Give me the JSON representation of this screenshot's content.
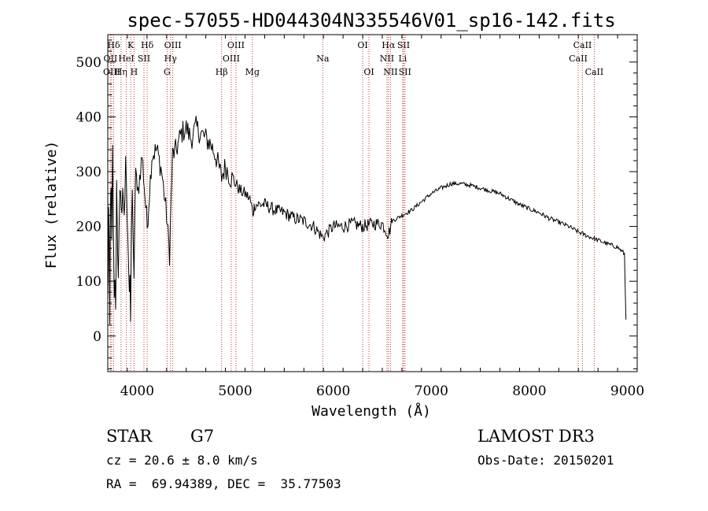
{
  "chart_data": {
    "type": "line",
    "title": "spec-57055-HD044304N335546V01_sp16-142.fits",
    "xlabel": "Wavelength (Å)",
    "ylabel": "Flux (relative)",
    "xlim": [
      3700,
      9100
    ],
    "ylim": [
      -65,
      550
    ],
    "x_ticks": [
      4000,
      5000,
      6000,
      7000,
      8000,
      9000
    ],
    "y_ticks": [
      0,
      100,
      200,
      300,
      400,
      500
    ],
    "series": [
      {
        "name": "flux",
        "color": "#000000",
        "knots": [
          [
            3700,
            50
          ],
          [
            3710,
            220
          ],
          [
            3720,
            0
          ],
          [
            3730,
            300
          ],
          [
            3740,
            150
          ],
          [
            3750,
            320
          ],
          [
            3760,
            120
          ],
          [
            3780,
            80
          ],
          [
            3790,
            250
          ],
          [
            3800,
            110
          ],
          [
            3830,
            280
          ],
          [
            3860,
            200
          ],
          [
            3890,
            320
          ],
          [
            3920,
            80
          ],
          [
            3933,
            30
          ],
          [
            3950,
            300
          ],
          [
            3968,
            60
          ],
          [
            3985,
            330
          ],
          [
            4000,
            250
          ],
          [
            4050,
            330
          ],
          [
            4102,
            200
          ],
          [
            4150,
            330
          ],
          [
            4200,
            340
          ],
          [
            4250,
            300
          ],
          [
            4300,
            220
          ],
          [
            4330,
            150
          ],
          [
            4360,
            330
          ],
          [
            4400,
            340
          ],
          [
            4450,
            370
          ],
          [
            4500,
            380
          ],
          [
            4550,
            360
          ],
          [
            4600,
            380
          ],
          [
            4650,
            370
          ],
          [
            4700,
            360
          ],
          [
            4750,
            350
          ],
          [
            4800,
            330
          ],
          [
            4861,
            290
          ],
          [
            4900,
            310
          ],
          [
            4950,
            290
          ],
          [
            5000,
            280
          ],
          [
            5050,
            265
          ],
          [
            5100,
            260
          ],
          [
            5150,
            250
          ],
          [
            5180,
            225
          ],
          [
            5200,
            240
          ],
          [
            5300,
            240
          ],
          [
            5400,
            230
          ],
          [
            5500,
            225
          ],
          [
            5600,
            215
          ],
          [
            5700,
            210
          ],
          [
            5800,
            200
          ],
          [
            5893,
            180
          ],
          [
            6000,
            200
          ],
          [
            6100,
            200
          ],
          [
            6200,
            205
          ],
          [
            6300,
            200
          ],
          [
            6400,
            205
          ],
          [
            6500,
            205
          ],
          [
            6563,
            185
          ],
          [
            6600,
            210
          ],
          [
            6700,
            220
          ],
          [
            6800,
            230
          ],
          [
            6900,
            245
          ],
          [
            7000,
            260
          ],
          [
            7100,
            270
          ],
          [
            7200,
            278
          ],
          [
            7300,
            278
          ],
          [
            7400,
            275
          ],
          [
            7500,
            270
          ],
          [
            7600,
            265
          ],
          [
            7700,
            260
          ],
          [
            7800,
            250
          ],
          [
            7900,
            240
          ],
          [
            8000,
            232
          ],
          [
            8100,
            225
          ],
          [
            8200,
            215
          ],
          [
            8300,
            208
          ],
          [
            8400,
            200
          ],
          [
            8500,
            190
          ],
          [
            8600,
            182
          ],
          [
            8700,
            175
          ],
          [
            8800,
            168
          ],
          [
            8900,
            162
          ],
          [
            8970,
            150
          ],
          [
            8985,
            30
          ]
        ]
      }
    ],
    "lines": [
      {
        "label": "Hδ",
        "x": 3760,
        "tier": 0
      },
      {
        "label": "OII",
        "x": 3727,
        "tier": 1
      },
      {
        "label": "OIII",
        "x": 3740,
        "tier": 2
      },
      {
        "label": "Hη",
        "x": 3835,
        "tier": 2
      },
      {
        "label": "K",
        "x": 3934,
        "tier": 0
      },
      {
        "label": "HeI",
        "x": 3889,
        "tier": 1
      },
      {
        "label": "H",
        "x": 3968,
        "tier": 2
      },
      {
        "label": "SII",
        "x": 4069,
        "tier": 1
      },
      {
        "label": "Hδ",
        "x": 4102,
        "tier": 0
      },
      {
        "label": "OIII",
        "x": 4363,
        "tier": 0
      },
      {
        "label": "Hγ",
        "x": 4340,
        "tier": 1
      },
      {
        "label": "G",
        "x": 4305,
        "tier": 2
      },
      {
        "label": "Hβ",
        "x": 4861,
        "tier": 2
      },
      {
        "label": "OIII",
        "x": 4959,
        "tier": 1
      },
      {
        "label": "OIII",
        "x": 5007,
        "tier": 0
      },
      {
        "label": "Mg",
        "x": 5175,
        "tier": 2
      },
      {
        "label": "Na",
        "x": 5893,
        "tier": 1
      },
      {
        "label": "OI",
        "x": 6300,
        "tier": 0
      },
      {
        "label": "OI",
        "x": 6364,
        "tier": 2
      },
      {
        "label": "Hα",
        "x": 6563,
        "tier": 0
      },
      {
        "label": "NII",
        "x": 6548,
        "tier": 1
      },
      {
        "label": "NII",
        "x": 6584,
        "tier": 2
      },
      {
        "label": "SII",
        "x": 6717,
        "tier": 0
      },
      {
        "label": "Li",
        "x": 6708,
        "tier": 1
      },
      {
        "label": "SII",
        "x": 6731,
        "tier": 2
      },
      {
        "label": "CaII",
        "x": 8542,
        "tier": 0
      },
      {
        "label": "CaII",
        "x": 8498,
        "tier": 1
      },
      {
        "label": "CaII",
        "x": 8662,
        "tier": 2
      }
    ]
  },
  "info": {
    "object_class": "STAR",
    "subclass": "G7",
    "redshift": "cz = 20.6 ± 8.0 km/s",
    "coords": "RA =  69.94389, DEC =  35.77503",
    "survey": "LAMOST DR3",
    "obs_date": "Obs-Date: 20150201"
  }
}
